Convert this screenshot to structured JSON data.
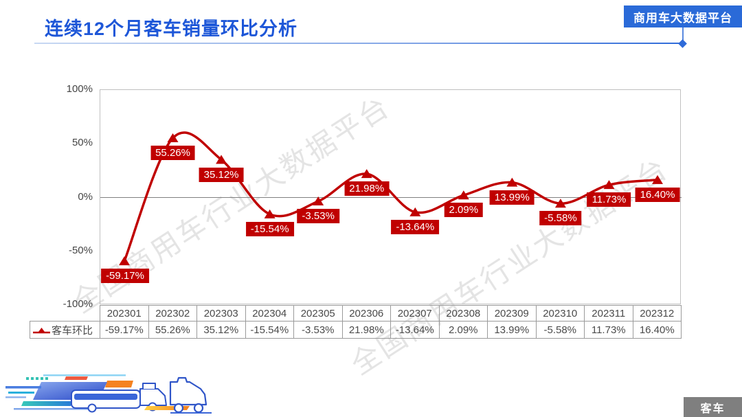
{
  "header": {
    "title": "连续12个月客车销量环比分析",
    "platform_badge": "商用车大数据平台"
  },
  "watermark_text": "全国商用车行业大数据平台",
  "chart_data": {
    "type": "line",
    "title": "连续12个月客车销量环比分析",
    "categories": [
      "202301",
      "202302",
      "202303",
      "202304",
      "202305",
      "202306",
      "202307",
      "202308",
      "202309",
      "202310",
      "202311",
      "202312"
    ],
    "series": [
      {
        "name": "客车环比",
        "values": [
          -59.17,
          55.26,
          35.12,
          -15.54,
          -3.53,
          21.98,
          -13.64,
          2.09,
          13.99,
          -5.58,
          11.73,
          16.4
        ],
        "labels": [
          "-59.17%",
          "55.26%",
          "35.12%",
          "-15.54%",
          "-3.53%",
          "21.98%",
          "-13.64%",
          "2.09%",
          "13.99%",
          "-5.58%",
          "11.73%",
          "16.40%"
        ]
      }
    ],
    "ylim": [
      -100,
      100
    ],
    "yticks": [
      "100%",
      "50%",
      "0%",
      "-50%",
      "-100%"
    ],
    "grid": "zero-line-only",
    "legend_position": "table-row-left",
    "marker": "triangle-up",
    "line_color": "#c00000"
  },
  "footer": {
    "category_badge": "客车"
  },
  "colors": {
    "series_red": "#c00000",
    "title_blue": "#1e57d8",
    "badge_blue": "#2a6ad8",
    "axis_text_gray": "#4a4a4a",
    "watermark_gray": "#cfcfcf",
    "category_badge_gray": "#7f7f7f"
  }
}
